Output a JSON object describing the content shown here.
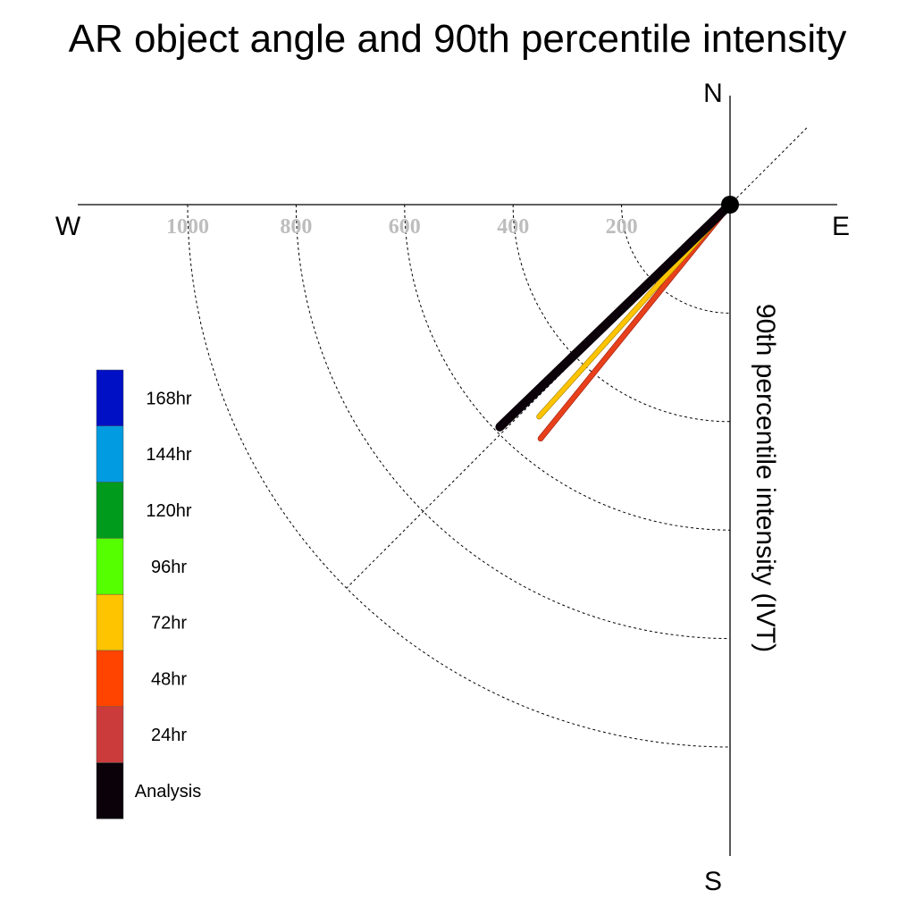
{
  "chart_data": {
    "type": "polar-vector",
    "title": "AR object angle and 90th percentile intensity",
    "radial_axis_label": "90th percentile intensity (IVT)",
    "compass": {
      "north": "N",
      "east": "E",
      "south": "S",
      "west": "W"
    },
    "radial_ticks": [
      200,
      400,
      600,
      800,
      1000
    ],
    "radial_tick_labels": [
      "200",
      "400",
      "600",
      "800",
      "1000"
    ],
    "rmax": 1200,
    "quadrant": "SW",
    "reference_line_angle_deg": 225,
    "series": [
      {
        "name": "48hr",
        "angle_deg": 219,
        "magnitude": 555,
        "color": "#e8401a"
      },
      {
        "name": "72hr",
        "angle_deg": 222,
        "magnitude": 526,
        "color": "#ffc400"
      },
      {
        "name": "Analysis",
        "angle_deg": 226,
        "magnitude": 590,
        "color": "#0a0208"
      }
    ],
    "legend": {
      "placement": "left",
      "entries": [
        {
          "label": "168hr",
          "color": "#0010c4"
        },
        {
          "label": "144hr",
          "color": "#009be0"
        },
        {
          "label": "120hr",
          "color": "#009a1c"
        },
        {
          "label": "96hr",
          "color": "#55ff00"
        },
        {
          "label": "72hr",
          "color": "#ffc400"
        },
        {
          "label": "48hr",
          "color": "#ff4400"
        },
        {
          "label": "24hr",
          "color": "#cc3b3b"
        },
        {
          "label": "Analysis",
          "color": "#0a0208"
        }
      ]
    }
  }
}
